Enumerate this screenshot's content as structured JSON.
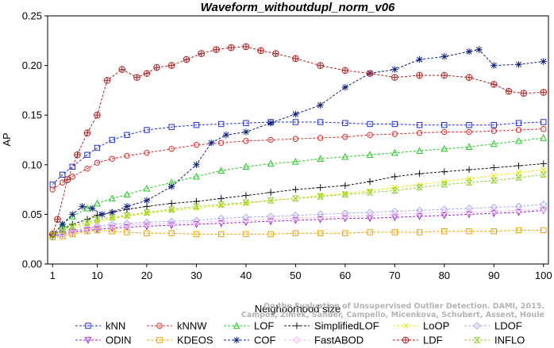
{
  "chart_data": {
    "type": "line",
    "title": "Waveform_withoutdupl_norm_v06",
    "xlabel": "Neighborhood size",
    "ylabel": "AP",
    "xlim": [
      0,
      101
    ],
    "ylim": [
      0.0,
      0.25
    ],
    "xticks": [
      1,
      10,
      20,
      30,
      40,
      50,
      60,
      70,
      80,
      90,
      100
    ],
    "yticks": [
      0.0,
      0.05,
      0.1,
      0.15,
      0.2,
      0.25
    ],
    "ytick_labels": [
      "0.00",
      "0.05",
      "0.10",
      "0.15",
      "0.20",
      "0.25"
    ],
    "grid": false,
    "legend_position": "bottom",
    "credit": [
      "Campos, Zimek, Sander, Campello, Micenkova, Schubert, Assent, Houle",
      "On the Evaluation of Unsupervised Outlier Detection. DAMI, 2015."
    ],
    "series": [
      {
        "name": "kNN",
        "color": "#1f2fd6",
        "marker": "square",
        "x": [
          1,
          3,
          5,
          8,
          10,
          13,
          16,
          20,
          25,
          30,
          35,
          40,
          45,
          50,
          55,
          60,
          65,
          70,
          75,
          80,
          85,
          90,
          95,
          100
        ],
        "y": [
          0.08,
          0.09,
          0.098,
          0.11,
          0.117,
          0.125,
          0.13,
          0.135,
          0.138,
          0.14,
          0.141,
          0.142,
          0.143,
          0.143,
          0.143,
          0.142,
          0.141,
          0.141,
          0.14,
          0.14,
          0.14,
          0.14,
          0.142,
          0.143
        ]
      },
      {
        "name": "kNNW",
        "color": "#e02828",
        "marker": "circle",
        "x": [
          1,
          3,
          5,
          8,
          10,
          13,
          16,
          20,
          25,
          30,
          35,
          40,
          45,
          50,
          55,
          60,
          65,
          70,
          75,
          80,
          85,
          90,
          95,
          100
        ],
        "y": [
          0.075,
          0.082,
          0.088,
          0.096,
          0.102,
          0.106,
          0.109,
          0.112,
          0.116,
          0.12,
          0.122,
          0.124,
          0.125,
          0.126,
          0.127,
          0.128,
          0.13,
          0.131,
          0.132,
          0.133,
          0.133,
          0.134,
          0.135,
          0.136
        ]
      },
      {
        "name": "LOF",
        "color": "#22cc22",
        "marker": "triangle",
        "x": [
          1,
          3,
          5,
          8,
          10,
          13,
          16,
          20,
          25,
          30,
          35,
          40,
          45,
          50,
          55,
          60,
          65,
          70,
          75,
          80,
          85,
          90,
          95,
          100
        ],
        "y": [
          0.029,
          0.04,
          0.048,
          0.056,
          0.061,
          0.066,
          0.07,
          0.076,
          0.082,
          0.088,
          0.094,
          0.098,
          0.101,
          0.103,
          0.106,
          0.108,
          0.11,
          0.112,
          0.114,
          0.116,
          0.118,
          0.121,
          0.124,
          0.127
        ]
      },
      {
        "name": "SimplifiedLOF",
        "color": "#111111",
        "marker": "plus",
        "x": [
          1,
          3,
          5,
          8,
          10,
          13,
          16,
          20,
          25,
          30,
          35,
          40,
          45,
          50,
          55,
          60,
          65,
          70,
          75,
          80,
          85,
          90,
          95,
          100
        ],
        "y": [
          0.029,
          0.035,
          0.04,
          0.045,
          0.049,
          0.052,
          0.055,
          0.058,
          0.061,
          0.063,
          0.066,
          0.069,
          0.072,
          0.075,
          0.077,
          0.079,
          0.083,
          0.088,
          0.091,
          0.093,
          0.095,
          0.097,
          0.099,
          0.101
        ]
      },
      {
        "name": "LoOP",
        "color": "#e8e800",
        "marker": "x",
        "x": [
          1,
          3,
          5,
          8,
          10,
          13,
          16,
          20,
          25,
          30,
          35,
          40,
          45,
          50,
          55,
          60,
          65,
          70,
          75,
          80,
          85,
          90,
          95,
          100
        ],
        "y": [
          0.029,
          0.033,
          0.036,
          0.04,
          0.043,
          0.046,
          0.048,
          0.051,
          0.054,
          0.056,
          0.059,
          0.061,
          0.064,
          0.066,
          0.069,
          0.071,
          0.074,
          0.077,
          0.08,
          0.083,
          0.086,
          0.089,
          0.092,
          0.095
        ]
      },
      {
        "name": "LDOF",
        "color": "#a8a8f0",
        "marker": "diamond",
        "x": [
          1,
          3,
          5,
          8,
          10,
          13,
          16,
          20,
          25,
          30,
          35,
          40,
          45,
          50,
          55,
          60,
          65,
          70,
          75,
          80,
          85,
          90,
          95,
          100
        ],
        "y": [
          0.029,
          0.032,
          0.034,
          0.036,
          0.038,
          0.04,
          0.041,
          0.042,
          0.043,
          0.044,
          0.046,
          0.047,
          0.048,
          0.049,
          0.05,
          0.051,
          0.052,
          0.053,
          0.054,
          0.055,
          0.056,
          0.057,
          0.058,
          0.06
        ]
      },
      {
        "name": "ODIN",
        "color": "#9b1fd6",
        "marker": "triangle-down",
        "x": [
          1,
          3,
          5,
          8,
          10,
          13,
          16,
          20,
          25,
          30,
          35,
          40,
          45,
          50,
          55,
          60,
          65,
          70,
          75,
          80,
          85,
          90,
          95,
          100
        ],
        "y": [
          0.028,
          0.03,
          0.032,
          0.034,
          0.035,
          0.036,
          0.037,
          0.038,
          0.039,
          0.04,
          0.041,
          0.042,
          0.043,
          0.044,
          0.045,
          0.046,
          0.046,
          0.047,
          0.048,
          0.049,
          0.05,
          0.051,
          0.052,
          0.054
        ]
      },
      {
        "name": "KDEOS",
        "color": "#f0a000",
        "marker": "square",
        "x": [
          1,
          3,
          5,
          8,
          10,
          13,
          16,
          20,
          25,
          30,
          35,
          40,
          45,
          50,
          55,
          60,
          65,
          70,
          75,
          80,
          85,
          90,
          95,
          100
        ],
        "y": [
          0.027,
          0.028,
          0.03,
          0.033,
          0.034,
          0.033,
          0.032,
          0.031,
          0.031,
          0.03,
          0.03,
          0.03,
          0.03,
          0.031,
          0.031,
          0.031,
          0.032,
          0.032,
          0.032,
          0.033,
          0.033,
          0.033,
          0.034,
          0.034
        ]
      },
      {
        "name": "COF",
        "color": "#102080",
        "marker": "star",
        "x": [
          1,
          3,
          5,
          7,
          9,
          11,
          13,
          16,
          20,
          25,
          30,
          33,
          36,
          40,
          45,
          50,
          55,
          60,
          65,
          70,
          75,
          80,
          85,
          87,
          90,
          95,
          100
        ],
        "y": [
          0.029,
          0.04,
          0.05,
          0.058,
          0.056,
          0.05,
          0.052,
          0.058,
          0.064,
          0.078,
          0.1,
          0.122,
          0.13,
          0.133,
          0.142,
          0.151,
          0.16,
          0.178,
          0.192,
          0.196,
          0.206,
          0.209,
          0.214,
          0.216,
          0.2,
          0.201,
          0.204
        ]
      },
      {
        "name": "FastABOD",
        "color": "#f0b8f0",
        "marker": "diamond",
        "x": [
          1,
          3,
          5,
          8,
          10,
          13,
          16,
          20,
          25,
          30,
          35,
          40,
          45,
          50,
          55,
          60,
          65,
          70,
          75,
          80,
          85,
          90,
          95,
          100
        ],
        "y": [
          0.029,
          0.031,
          0.033,
          0.035,
          0.037,
          0.038,
          0.039,
          0.04,
          0.041,
          0.042,
          0.043,
          0.044,
          0.045,
          0.046,
          0.047,
          0.048,
          0.049,
          0.05,
          0.051,
          0.052,
          0.052,
          0.053,
          0.054,
          0.055
        ]
      },
      {
        "name": "LDF",
        "color": "#b02020",
        "marker": "circle-plus",
        "x": [
          1,
          2,
          4,
          6,
          8,
          10,
          12,
          15,
          18,
          20,
          22,
          25,
          28,
          31,
          34,
          37,
          40,
          43,
          46,
          50,
          55,
          60,
          65,
          70,
          75,
          80,
          85,
          90,
          93,
          96,
          100
        ],
        "y": [
          0.03,
          0.045,
          0.085,
          0.11,
          0.132,
          0.15,
          0.185,
          0.196,
          0.188,
          0.192,
          0.198,
          0.2,
          0.206,
          0.212,
          0.216,
          0.218,
          0.219,
          0.215,
          0.212,
          0.207,
          0.2,
          0.195,
          0.192,
          0.188,
          0.19,
          0.19,
          0.188,
          0.181,
          0.174,
          0.172,
          0.173
        ]
      },
      {
        "name": "INFLO",
        "color": "#90d030",
        "marker": "hourglass",
        "x": [
          1,
          3,
          5,
          8,
          10,
          13,
          16,
          20,
          25,
          30,
          35,
          40,
          45,
          50,
          55,
          60,
          65,
          70,
          75,
          80,
          85,
          90,
          95,
          100
        ],
        "y": [
          0.029,
          0.034,
          0.038,
          0.042,
          0.045,
          0.047,
          0.049,
          0.052,
          0.055,
          0.058,
          0.06,
          0.062,
          0.064,
          0.066,
          0.068,
          0.07,
          0.072,
          0.074,
          0.077,
          0.08,
          0.082,
          0.084,
          0.087,
          0.09
        ]
      }
    ]
  }
}
